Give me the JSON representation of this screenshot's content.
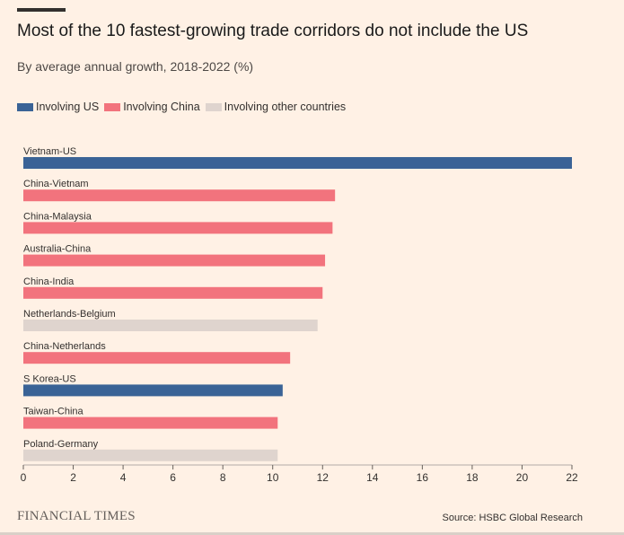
{
  "header": {
    "title": "Most of the 10 fastest-growing trade corridors do not include the US",
    "subtitle": "By average annual growth, 2018-2022 (%)"
  },
  "legend": [
    {
      "label": "Involving US",
      "color": "#3a6396"
    },
    {
      "label": "Involving China",
      "color": "#f2737d"
    },
    {
      "label": "Involving other countries",
      "color": "#dfd4ce"
    }
  ],
  "chart_data": {
    "type": "bar",
    "orientation": "horizontal",
    "title": "Most of the 10 fastest-growing trade corridors do not include the US",
    "subtitle": "By average annual growth, 2018-2022 (%)",
    "xlim": [
      0,
      22
    ],
    "ticks": [
      0,
      2,
      4,
      6,
      8,
      10,
      12,
      14,
      16,
      18,
      20,
      22
    ],
    "grid": false,
    "legend_position": "top-left",
    "bars": [
      {
        "label": "Vietnam-US",
        "value": 22.0,
        "group": "Involving US"
      },
      {
        "label": "China-Vietnam",
        "value": 12.5,
        "group": "Involving China"
      },
      {
        "label": "China-Malaysia",
        "value": 12.4,
        "group": "Involving China"
      },
      {
        "label": "Australia-China",
        "value": 12.1,
        "group": "Involving China"
      },
      {
        "label": "China-India",
        "value": 12.0,
        "group": "Involving China"
      },
      {
        "label": "Netherlands-Belgium",
        "value": 11.8,
        "group": "Involving other countries"
      },
      {
        "label": "China-Netherlands",
        "value": 10.7,
        "group": "Involving China"
      },
      {
        "label": "S Korea-US",
        "value": 10.4,
        "group": "Involving US"
      },
      {
        "label": "Taiwan-China",
        "value": 10.2,
        "group": "Involving China"
      },
      {
        "label": "Poland-Germany",
        "value": 10.2,
        "group": "Involving other countries"
      }
    ]
  },
  "footer": {
    "brand": "FINANCIAL TIMES",
    "source": "Source: HSBC Global Research"
  }
}
